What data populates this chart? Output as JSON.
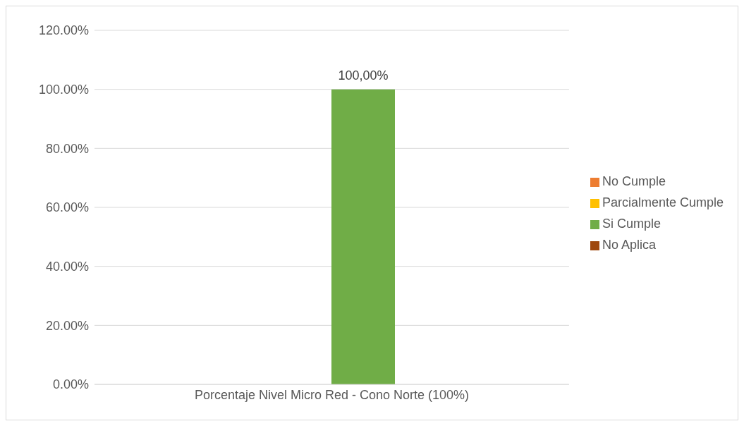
{
  "chart_data": {
    "type": "bar",
    "categories": [
      "Porcentaje Nivel Micro Red - Cono Norte (100%)"
    ],
    "series": [
      {
        "name": "No Cumple",
        "color": "#ed7d31",
        "values": [
          0
        ],
        "value_labels": [
          null
        ]
      },
      {
        "name": "Parcialmente Cumple",
        "color": "#ffc000",
        "values": [
          0
        ],
        "value_labels": [
          null
        ]
      },
      {
        "name": "Si Cumple",
        "color": "#70ad47",
        "values": [
          100
        ],
        "value_labels": [
          "100,00%"
        ]
      },
      {
        "name": "No Aplica",
        "color": "#9e480e",
        "values": [
          0
        ],
        "value_labels": [
          null
        ]
      }
    ],
    "ylim": [
      0,
      120
    ],
    "yticks": [
      {
        "value": 0,
        "label": "0.00%"
      },
      {
        "value": 20,
        "label": "20.00%"
      },
      {
        "value": 40,
        "label": "40.00%"
      },
      {
        "value": 60,
        "label": "60.00%"
      },
      {
        "value": 80,
        "label": "80.00%"
      },
      {
        "value": 100,
        "label": "100.00%"
      },
      {
        "value": 120,
        "label": "120.00%"
      }
    ],
    "grid": "y",
    "legend": "right"
  }
}
